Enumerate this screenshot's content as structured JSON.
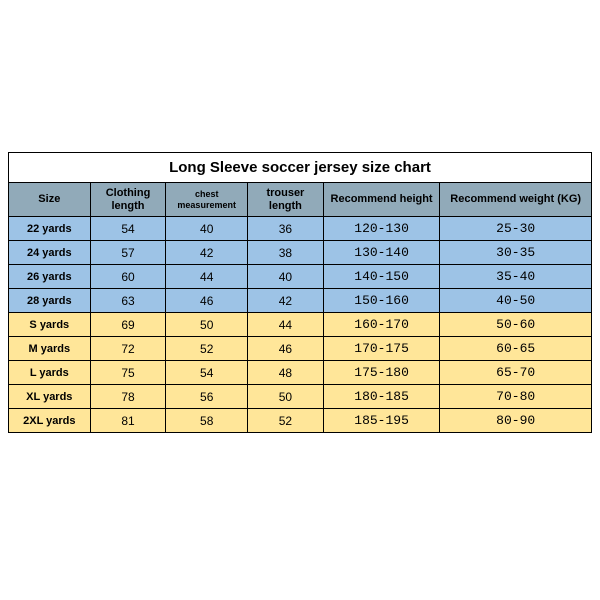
{
  "title": "Long Sleeve soccer jersey size chart",
  "columns": [
    "Size",
    "Clothing length",
    "chest measurement",
    "trouser length",
    "Recommend height",
    "Recommend weight (KG)"
  ],
  "column_widths_pct": [
    14,
    13,
    14,
    13,
    20,
    26
  ],
  "colors": {
    "header_bg": "#91aab9",
    "youth_bg": "#9dc3e6",
    "adult_bg": "#ffe699",
    "border": "#000000",
    "text": "#000000"
  },
  "rows": [
    {
      "group": "youth",
      "cells": [
        "22 yards",
        "54",
        "40",
        "36",
        "120-130",
        "25-30"
      ]
    },
    {
      "group": "youth",
      "cells": [
        "24 yards",
        "57",
        "42",
        "38",
        "130-140",
        "30-35"
      ]
    },
    {
      "group": "youth",
      "cells": [
        "26 yards",
        "60",
        "44",
        "40",
        "140-150",
        "35-40"
      ]
    },
    {
      "group": "youth",
      "cells": [
        "28 yards",
        "63",
        "46",
        "42",
        "150-160",
        "40-50"
      ]
    },
    {
      "group": "adult",
      "cells": [
        "S yards",
        "69",
        "50",
        "44",
        "160-170",
        "50-60"
      ]
    },
    {
      "group": "adult",
      "cells": [
        "M yards",
        "72",
        "52",
        "46",
        "170-175",
        "60-65"
      ]
    },
    {
      "group": "adult",
      "cells": [
        "L yards",
        "75",
        "54",
        "48",
        "175-180",
        "65-70"
      ]
    },
    {
      "group": "adult",
      "cells": [
        "XL yards",
        "78",
        "56",
        "50",
        "180-185",
        "70-80"
      ]
    },
    {
      "group": "adult",
      "cells": [
        "2XL yards",
        "81",
        "58",
        "52",
        "185-195",
        "80-90"
      ]
    }
  ]
}
